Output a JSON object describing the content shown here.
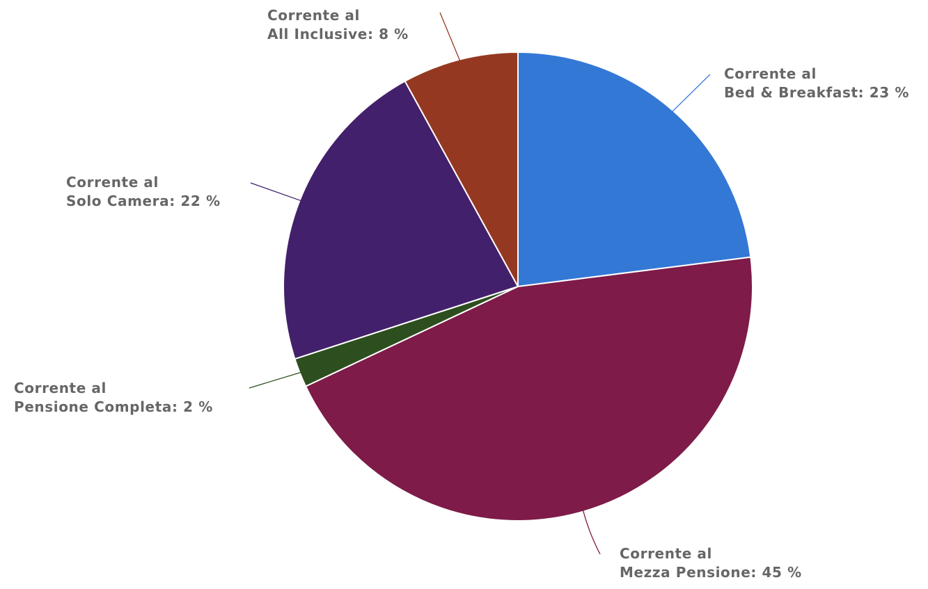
{
  "chart_data": {
    "type": "pie",
    "title": "",
    "start_angle_deg": 0,
    "direction": "clockwise",
    "slices": [
      {
        "label_line1": "Corrente al",
        "label_line2": "Bed & Breakfast: 23 %",
        "category": "Bed & Breakfast",
        "value": 23,
        "color": "#3478d6"
      },
      {
        "label_line1": "Corrente al",
        "label_line2": "Mezza Pensione: 45 %",
        "category": "Mezza Pensione",
        "value": 45,
        "color": "#7e1b48"
      },
      {
        "label_line1": "Corrente al",
        "label_line2": "Pensione Completa: 2 %",
        "category": "Pensione Completa",
        "value": 2,
        "color": "#2d4e1f"
      },
      {
        "label_line1": "Corrente al",
        "label_line2": "Solo Camera: 22 %",
        "category": "Solo Camera",
        "value": 22,
        "color": "#43206b"
      },
      {
        "label_line1": "Corrente al",
        "label_line2": "All Inclusive: 8 %",
        "category": "All Inclusive",
        "value": 8,
        "color": "#953821"
      }
    ]
  }
}
